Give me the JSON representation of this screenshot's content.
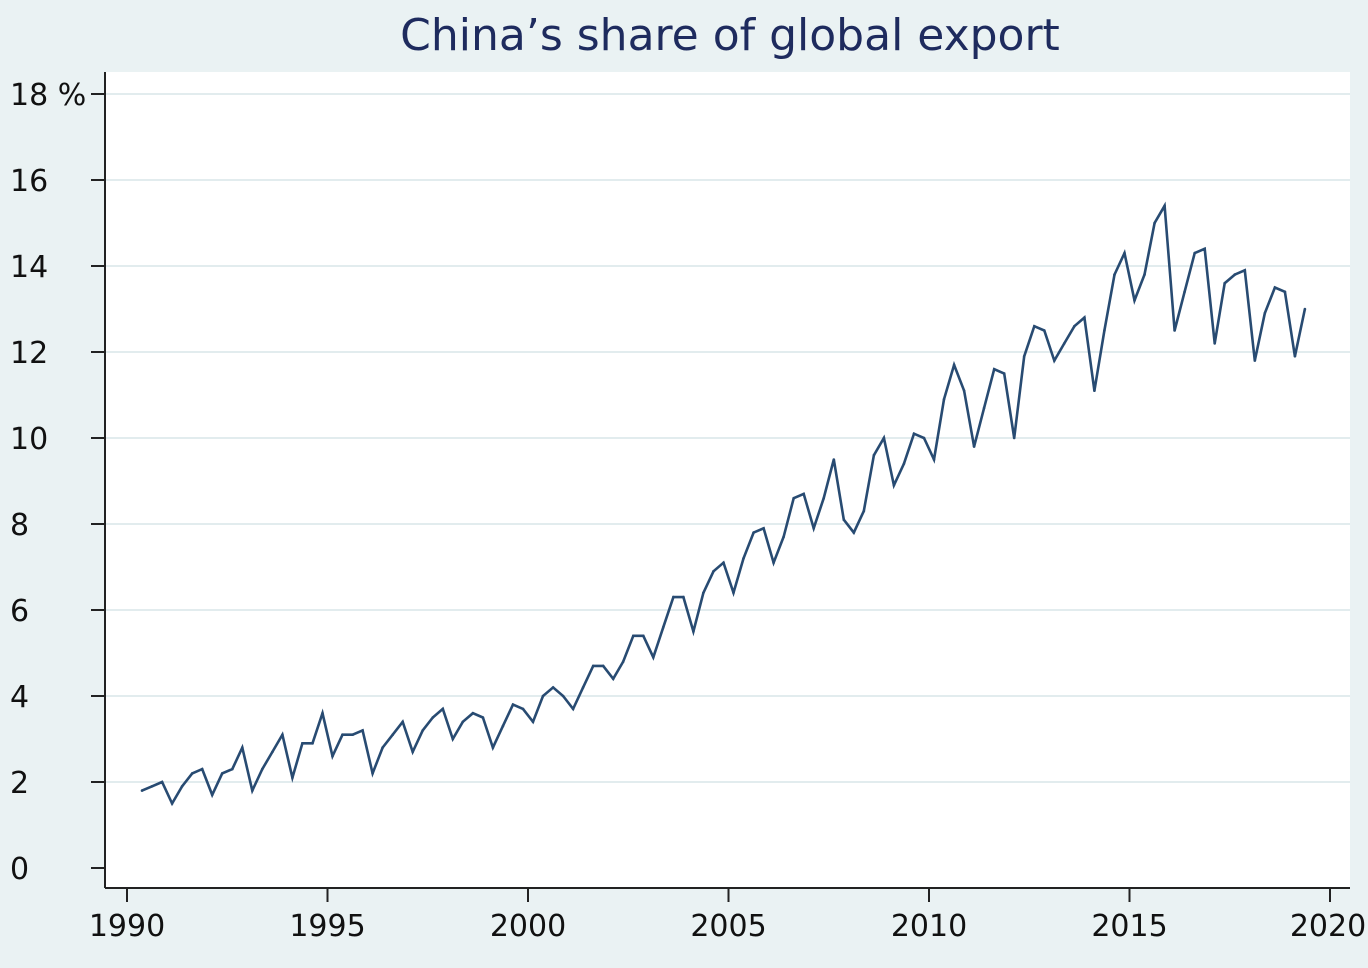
{
  "chart_data": {
    "type": "line",
    "title": "China’s share of global export",
    "xlabel": "",
    "ylabel": "",
    "xlim": [
      1989.5,
      2020.5
    ],
    "ylim": [
      -0.5,
      18.5
    ],
    "grid": true,
    "x_ticks": [
      {
        "value": 1990,
        "label": "1990"
      },
      {
        "value": 1995,
        "label": "1995"
      },
      {
        "value": 2000,
        "label": "2000"
      },
      {
        "value": 2005,
        "label": "2005"
      },
      {
        "value": 2010,
        "label": "2010"
      },
      {
        "value": 2015,
        "label": "2015"
      },
      {
        "value": 2020,
        "label": "2020"
      }
    ],
    "y_ticks": [
      {
        "value": 0,
        "label": "0"
      },
      {
        "value": 2,
        "label": "2"
      },
      {
        "value": 4,
        "label": "4"
      },
      {
        "value": 6,
        "label": "6"
      },
      {
        "value": 8,
        "label": "8"
      },
      {
        "value": 10,
        "label": "10"
      },
      {
        "value": 12,
        "label": "12"
      },
      {
        "value": 14,
        "label": "14"
      },
      {
        "value": 16,
        "label": "16"
      },
      {
        "value": 18,
        "label": "18 %"
      }
    ],
    "colors": {
      "line": "#284b72",
      "background": "#eaf2f3",
      "plot_area": "#ffffff",
      "grid": "#e2ecee",
      "axis": "#222222",
      "title": "#1e2b5e"
    },
    "series": [
      {
        "x": [
          1990.375,
          1990.625,
          1990.875,
          1991.125,
          1991.375,
          1991.625,
          1991.875,
          1992.125,
          1992.375,
          1992.625,
          1992.875,
          1993.125,
          1993.375,
          1993.625,
          1993.875,
          1994.125,
          1994.375,
          1994.625,
          1994.875,
          1995.125,
          1995.375,
          1995.625,
          1995.875,
          1996.125,
          1996.375,
          1996.625,
          1996.875,
          1997.125,
          1997.375,
          1997.625,
          1997.875,
          1998.125,
          1998.375,
          1998.625,
          1998.875,
          1999.125,
          1999.375,
          1999.625,
          1999.875,
          2000.125,
          2000.375,
          2000.625,
          2000.875,
          2001.125,
          2001.375,
          2001.625,
          2001.875,
          2002.125,
          2002.375,
          2002.625,
          2002.875,
          2003.125,
          2003.375,
          2003.625,
          2003.875,
          2004.125,
          2004.375,
          2004.625,
          2004.875,
          2005.125,
          2005.375,
          2005.625,
          2005.875,
          2006.125,
          2006.375,
          2006.625,
          2006.875,
          2007.125,
          2007.375,
          2007.625,
          2007.875,
          2008.125,
          2008.375,
          2008.625,
          2008.875,
          2009.125,
          2009.375,
          2009.625,
          2009.875,
          2010.125,
          2010.375,
          2010.625,
          2010.875,
          2011.125,
          2011.375,
          2011.625,
          2011.875,
          2012.125,
          2012.375,
          2012.625,
          2012.875,
          2013.125,
          2013.375,
          2013.625,
          2013.875,
          2014.125,
          2014.375,
          2014.625,
          2014.875,
          2015.125,
          2015.375,
          2015.625,
          2015.875,
          2016.125,
          2016.375,
          2016.625,
          2016.875,
          2017.125,
          2017.375,
          2017.625,
          2017.875,
          2018.125,
          2018.375,
          2018.625,
          2018.875,
          2019.125,
          2019.375
        ],
        "y": [
          1.8,
          1.9,
          2.0,
          1.5,
          1.9,
          2.2,
          2.3,
          1.7,
          2.2,
          2.3,
          2.8,
          1.8,
          2.3,
          2.7,
          3.1,
          2.1,
          2.9,
          2.9,
          3.6,
          2.6,
          3.1,
          3.1,
          3.2,
          2.2,
          2.8,
          3.1,
          3.4,
          2.7,
          3.2,
          3.5,
          3.7,
          3.0,
          3.4,
          3.6,
          3.5,
          2.8,
          3.3,
          3.8,
          3.7,
          3.4,
          4.0,
          4.2,
          4.0,
          3.7,
          4.2,
          4.7,
          4.7,
          4.4,
          4.8,
          5.4,
          5.4,
          4.9,
          5.6,
          6.3,
          6.3,
          5.5,
          6.4,
          6.9,
          7.1,
          6.4,
          7.2,
          7.8,
          7.9,
          7.1,
          7.7,
          8.6,
          8.7,
          7.9,
          8.6,
          9.5,
          8.1,
          7.8,
          8.3,
          9.6,
          10.0,
          8.9,
          9.4,
          10.1,
          10.0,
          9.5,
          10.9,
          11.7,
          11.1,
          9.8,
          10.7,
          11.6,
          11.5,
          10.0,
          11.9,
          12.6,
          12.5,
          11.8,
          12.2,
          12.6,
          12.8,
          11.1,
          12.5,
          13.8,
          14.3,
          13.2,
          13.8,
          15.0,
          15.4,
          12.5,
          13.4,
          14.3,
          14.4,
          12.2,
          13.6,
          13.8,
          13.9,
          11.8,
          12.9,
          13.5,
          13.4,
          11.9,
          13.0
        ]
      }
    ]
  }
}
